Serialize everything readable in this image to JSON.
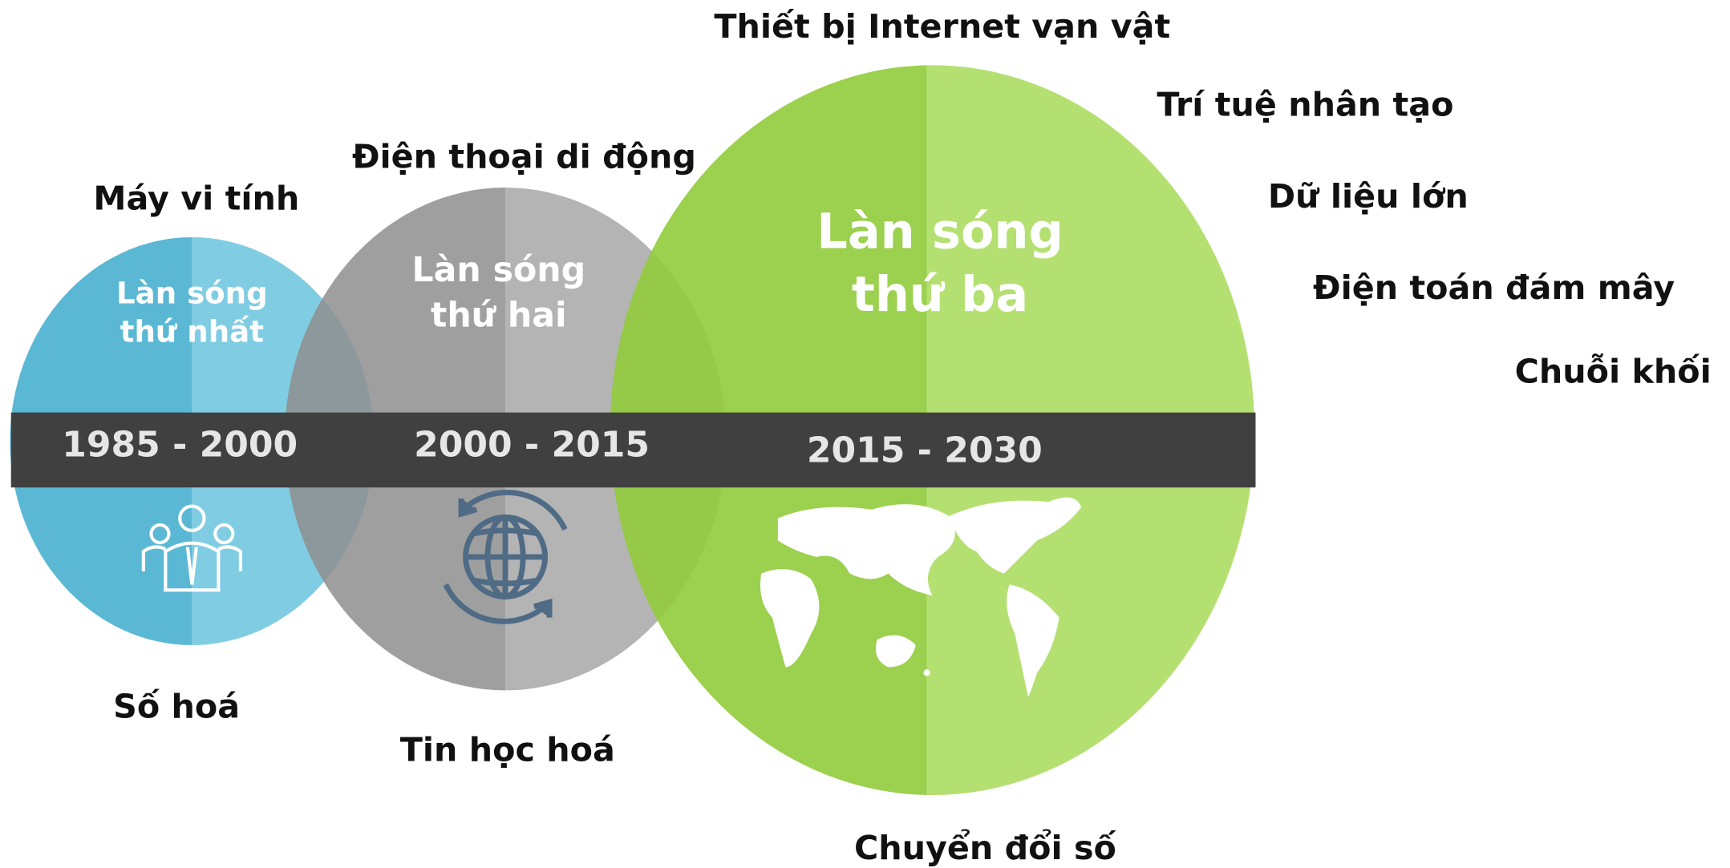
{
  "waves": [
    {
      "title": [
        "Làn sóng",
        "thứ nhất"
      ],
      "period": "1985 - 2000",
      "technologies": [
        "Máy vi tính"
      ],
      "outcome": "Số hoá"
    },
    {
      "title": [
        "Làn sóng",
        "thứ hai"
      ],
      "period": "2000 - 2015",
      "technologies": [
        "Điện thoại di động"
      ],
      "outcome": "Tin học hoá"
    },
    {
      "title": [
        "Làn sóng",
        "thứ ba"
      ],
      "period": "2015 - 2030",
      "technologies": [
        "Thiết bị Internet vạn vật",
        "Trí tuệ nhân tạo",
        "Dữ liệu lớn",
        "Điện toán đám mây",
        "Chuỗi khối"
      ],
      "outcome": "Chuyển đổi số"
    }
  ]
}
